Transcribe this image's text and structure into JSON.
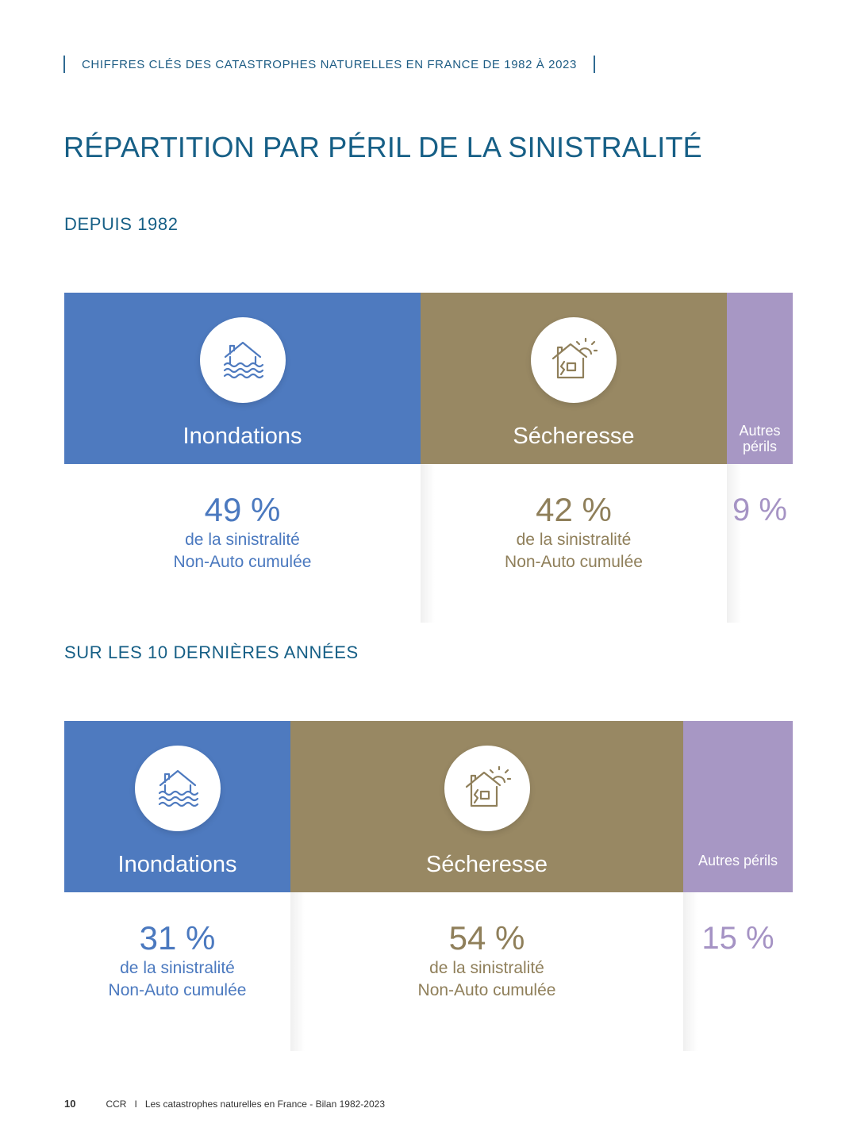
{
  "header": {
    "running_title": "CHIFFRES CLÉS DES CATASTROPHES NATURELLES EN FRANCE DE 1982 À 2023"
  },
  "title": "RÉPARTITION PAR PÉRIL DE LA SINISTRALITÉ",
  "sections": [
    {
      "title": "DEPUIS 1982",
      "segments": [
        {
          "label": "Inondations",
          "percent": "49 %",
          "desc_line1": "de la sinistralité",
          "desc_line2": "Non-Auto cumulée",
          "icon": "flooded-house-icon",
          "color": "#4e7abf",
          "share": 49
        },
        {
          "label": "Sécheresse",
          "percent": "42 %",
          "desc_line1": "de la sinistralité",
          "desc_line2": "Non-Auto cumulée",
          "icon": "cracked-house-sun-icon",
          "color": "#988863",
          "share": 42
        },
        {
          "label": "Autres\npérils",
          "percent": "9 %",
          "color": "#a797c4",
          "share": 9
        }
      ]
    },
    {
      "title": "SUR LES 10 DERNIÈRES ANNÉES",
      "segments": [
        {
          "label": "Inondations",
          "percent": "31 %",
          "desc_line1": "de la sinistralité",
          "desc_line2": "Non-Auto cumulée",
          "icon": "flooded-house-icon",
          "color": "#4e7abf",
          "share": 31
        },
        {
          "label": "Sécheresse",
          "percent": "54 %",
          "desc_line1": "de la sinistralité",
          "desc_line2": "Non-Auto cumulée",
          "icon": "cracked-house-sun-icon",
          "color": "#988863",
          "share": 54
        },
        {
          "label": "Autres périls",
          "percent": "15 %",
          "color": "#a797c4",
          "share": 15
        }
      ]
    }
  ],
  "footer": {
    "page_number": "10",
    "org": "CCR",
    "separator": "I",
    "publication": "Les catastrophes naturelles en France - Bilan 1982-2023"
  }
}
